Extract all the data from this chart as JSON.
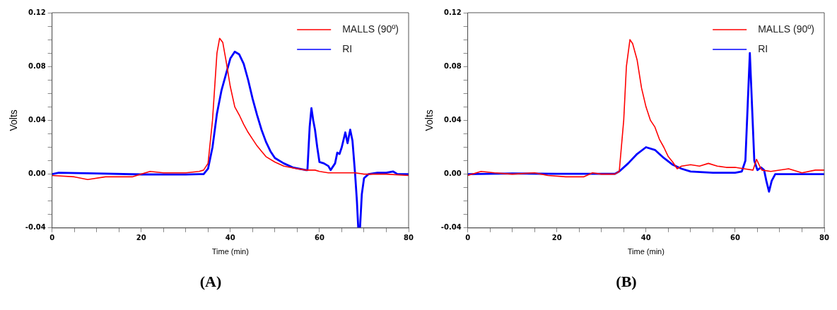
{
  "chart_data": [
    {
      "type": "line",
      "xlabel": "Time (min)",
      "ylabel": "Volts",
      "annotations": [
        "(A)"
      ],
      "legend": "top right",
      "marker": "none",
      "line_style": "solid",
      "grid": false,
      "xlim": [
        0,
        80
      ],
      "ylim": [
        -0.04,
        0.12
      ],
      "xticks": [
        0,
        {
          "value": 5,
          "label": null
        },
        {
          "value": 10,
          "label": null
        },
        {
          "value": 15,
          "label": null
        },
        20,
        {
          "value": 25,
          "label": null
        },
        {
          "value": 30,
          "label": null
        },
        {
          "value": 35,
          "label": null
        },
        40,
        {
          "value": 45,
          "label": null
        },
        {
          "value": 50,
          "label": null
        },
        {
          "value": 55,
          "label": null
        },
        60,
        {
          "value": 65,
          "label": null
        },
        {
          "value": 70,
          "label": null
        },
        {
          "value": 75,
          "label": null
        },
        80
      ],
      "yticks": [
        {
          "value": -0.04,
          "label": "-0.04"
        },
        {
          "value": -0.03,
          "label": null
        },
        {
          "value": -0.02,
          "label": null
        },
        {
          "value": -0.01,
          "label": null
        },
        {
          "value": 0,
          "label": "0.00"
        },
        {
          "value": 0.01,
          "label": null
        },
        {
          "value": 0.02,
          "label": null
        },
        {
          "value": 0.03,
          "label": null
        },
        {
          "value": 0.04,
          "label": "0.04"
        },
        {
          "value": 0.05,
          "label": null
        },
        {
          "value": 0.06,
          "label": null
        },
        {
          "value": 0.07,
          "label": null
        },
        {
          "value": 0.08,
          "label": "0.08"
        },
        {
          "value": 0.09,
          "label": null
        },
        {
          "value": 0.1,
          "label": null
        },
        {
          "value": 0.11,
          "label": null
        },
        {
          "value": 0.12,
          "label": "0.12"
        }
      ],
      "series": [
        {
          "name": "MALLS (90º)",
          "color": "#ff0000",
          "x": [
            0,
            5,
            8,
            12,
            15,
            18,
            20,
            22,
            25,
            28,
            30,
            33,
            34,
            35,
            36,
            37,
            37.6,
            38.3,
            39,
            40,
            41,
            42,
            43,
            44,
            45,
            46,
            47,
            48,
            50,
            52,
            55,
            57,
            59,
            60,
            62,
            65,
            68,
            70,
            75,
            80
          ],
          "values": [
            -0.001,
            -0.002,
            -0.004,
            -0.002,
            -0.002,
            -0.002,
            0,
            0.002,
            0.001,
            0.001,
            0.001,
            0.002,
            0.003,
            0.008,
            0.04,
            0.09,
            0.101,
            0.098,
            0.085,
            0.065,
            0.05,
            0.044,
            0.037,
            0.031,
            0.026,
            0.021,
            0.017,
            0.013,
            0.009,
            0.006,
            0.004,
            0.003,
            0.003,
            0.002,
            0.001,
            0.001,
            0.001,
            0,
            0,
            -0.001
          ]
        },
        {
          "name": "RI",
          "color": "#0000ff",
          "x": [
            0,
            1.5,
            10,
            20,
            30,
            33,
            34,
            35,
            36,
            37,
            38,
            39,
            40,
            41,
            42,
            43,
            44,
            45,
            46,
            47,
            48,
            49,
            50,
            52,
            54,
            57,
            57.3,
            57.8,
            58.2,
            58.6,
            59,
            59.5,
            60,
            61,
            62,
            62.5,
            63.5,
            64,
            64.5,
            65,
            65.8,
            66.3,
            66.9,
            67.4,
            68,
            68.4,
            68.7,
            69.1,
            69.5,
            70,
            71,
            73,
            75,
            76.5,
            77.5,
            80
          ],
          "values": [
            0,
            0.001,
            0.0005,
            -0.0002,
            -0.0003,
            0,
            0,
            0.004,
            0.02,
            0.045,
            0.062,
            0.074,
            0.086,
            0.091,
            0.089,
            0.082,
            0.07,
            0.056,
            0.044,
            0.033,
            0.024,
            0.017,
            0.012,
            0.008,
            0.005,
            0.003,
            0.003,
            0.035,
            0.049,
            0.04,
            0.033,
            0.02,
            0.009,
            0.008,
            0.006,
            0.003,
            0.008,
            0.016,
            0.015,
            0.02,
            0.031,
            0.023,
            0.033,
            0.025,
            0,
            -0.02,
            -0.04,
            -0.04,
            -0.015,
            -0.003,
            0,
            0.001,
            0.001,
            0.002,
            0,
            0
          ]
        }
      ]
    },
    {
      "type": "line",
      "xlabel": "Time (min)",
      "ylabel": "Volts",
      "annotations": [
        "(B)"
      ],
      "legend": "top right",
      "marker": "none",
      "line_style": "solid",
      "grid": false,
      "xlim": [
        0,
        80
      ],
      "ylim": [
        -0.04,
        0.12
      ],
      "xticks": [
        0,
        {
          "value": 5,
          "label": null
        },
        {
          "value": 10,
          "label": null
        },
        {
          "value": 15,
          "label": null
        },
        20,
        {
          "value": 25,
          "label": null
        },
        {
          "value": 30,
          "label": null
        },
        {
          "value": 35,
          "label": null
        },
        40,
        {
          "value": 45,
          "label": null
        },
        {
          "value": 50,
          "label": null
        },
        {
          "value": 55,
          "label": null
        },
        60,
        {
          "value": 65,
          "label": null
        },
        {
          "value": 70,
          "label": null
        },
        {
          "value": 75,
          "label": null
        },
        80
      ],
      "yticks": [
        {
          "value": -0.04,
          "label": "-0.04"
        },
        {
          "value": -0.03,
          "label": null
        },
        {
          "value": -0.02,
          "label": null
        },
        {
          "value": -0.01,
          "label": null
        },
        {
          "value": 0,
          "label": "0.00"
        },
        {
          "value": 0.01,
          "label": null
        },
        {
          "value": 0.02,
          "label": null
        },
        {
          "value": 0.03,
          "label": null
        },
        {
          "value": 0.04,
          "label": "0.04"
        },
        {
          "value": 0.05,
          "label": null
        },
        {
          "value": 0.06,
          "label": null
        },
        {
          "value": 0.07,
          "label": null
        },
        {
          "value": 0.08,
          "label": "0.08"
        },
        {
          "value": 0.09,
          "label": null
        },
        {
          "value": 0.1,
          "label": null
        },
        {
          "value": 0.11,
          "label": null
        },
        {
          "value": 0.12,
          "label": "0.12"
        }
      ],
      "series": [
        {
          "name": "MALLS (90º)",
          "color": "#ff0000",
          "x": [
            0,
            3,
            6,
            10,
            15,
            18,
            22,
            26,
            28,
            30,
            33,
            34,
            35,
            35.6,
            36.4,
            37,
            38,
            39,
            40,
            41,
            42,
            43,
            44,
            45,
            46,
            47,
            48,
            50,
            52,
            54,
            56,
            58,
            60,
            62,
            64,
            64.8,
            65.5,
            66,
            68,
            72,
            75,
            78,
            80
          ],
          "values": [
            -0.001,
            0.002,
            0.001,
            0,
            0.001,
            -0.001,
            -0.002,
            -0.002,
            0.001,
            0,
            0,
            0.002,
            0.04,
            0.08,
            0.1,
            0.097,
            0.085,
            0.064,
            0.05,
            0.04,
            0.035,
            0.026,
            0.02,
            0.013,
            0.009,
            0.004,
            0.006,
            0.007,
            0.006,
            0.008,
            0.006,
            0.005,
            0.005,
            0.004,
            0.003,
            0.011,
            0.006,
            0.003,
            0.002,
            0.004,
            0.001,
            0.003,
            0.003
          ]
        },
        {
          "name": "RI",
          "color": "#0000ff",
          "x": [
            0,
            10,
            20,
            30,
            33,
            34,
            36,
            38,
            40,
            42,
            44,
            46,
            48,
            50,
            55,
            60,
            61.5,
            62.3,
            62.8,
            63.3,
            63.8,
            64.3,
            65,
            65.8,
            66.5,
            67,
            67.6,
            68.2,
            69,
            80
          ],
          "values": [
            0,
            0.0005,
            0.0002,
            0.0002,
            0.0002,
            0.002,
            0.008,
            0.015,
            0.02,
            0.018,
            0.012,
            0.007,
            0.004,
            0.002,
            0.001,
            0.001,
            0.002,
            0.01,
            0.05,
            0.09,
            0.05,
            0.01,
            0.003,
            0.005,
            0.003,
            -0.005,
            -0.013,
            -0.005,
            0,
            0
          ]
        }
      ]
    }
  ]
}
